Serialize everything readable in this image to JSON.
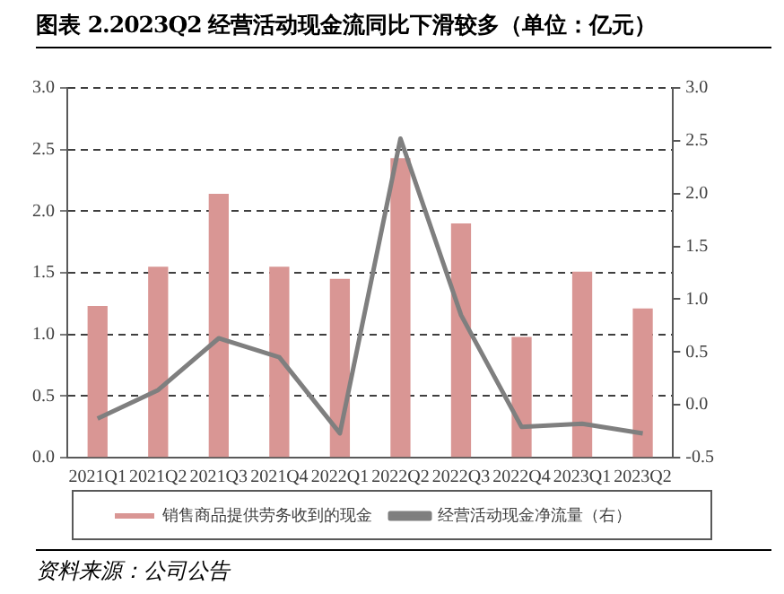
{
  "chart_data": {
    "type": "bar",
    "title": "图表 2.2023Q2 经营活动现金流同比下滑较多（单位：亿元）",
    "categories": [
      "2021Q1",
      "2021Q2",
      "2021Q3",
      "2021Q4",
      "2022Q1",
      "2022Q2",
      "2022Q3",
      "2022Q4",
      "2023Q1",
      "2023Q2"
    ],
    "series": [
      {
        "name": "销售商品提供劳务收到的现金",
        "color": "#d99694",
        "values": [
          1.23,
          1.55,
          2.14,
          1.55,
          1.45,
          2.43,
          1.9,
          0.98,
          1.51,
          1.21
        ]
      },
      {
        "name": "经营活动现金净流量（右）",
        "color": "#7f7f7f",
        "type": "line",
        "axis": "y2",
        "values": [
          -0.13,
          0.14,
          0.63,
          0.45,
          -0.27,
          2.52,
          0.85,
          -0.21,
          -0.18,
          -0.27
        ]
      }
    ],
    "ylim": [
      0,
      3
    ],
    "yticks": [
      {
        "value": 0,
        "label": "0.0"
      },
      0.5,
      {
        "value": 1,
        "label": "1.0"
      },
      1.5,
      {
        "value": 2,
        "label": "2.0"
      },
      2.5,
      {
        "value": 3,
        "label": "3.0"
      }
    ],
    "y2lim": [
      -0.5,
      3
    ],
    "y2ticks": [
      -0.5,
      {
        "value": 0,
        "label": "0.0"
      },
      0.5,
      {
        "value": 1,
        "label": "1.0"
      },
      1.5,
      {
        "value": 2,
        "label": "2.0"
      },
      2.5,
      {
        "value": 3,
        "label": "3.0"
      }
    ],
    "grid": "y",
    "legend": "bottom",
    "marker": "none",
    "annotations": [
      "资料来源：公司公告"
    ]
  }
}
